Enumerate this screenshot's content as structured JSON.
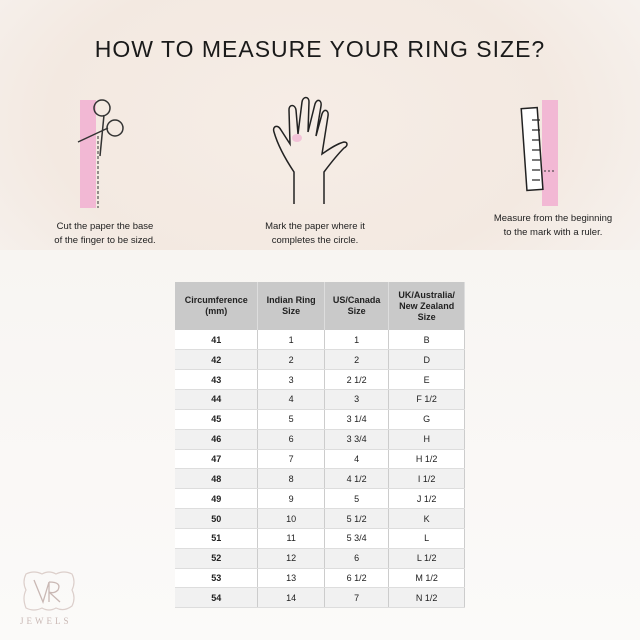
{
  "title": "HOW TO MEASURE YOUR RING SIZE?",
  "steps": [
    {
      "icon": "scissors-paper-icon",
      "line1": "Cut the paper the base",
      "line2": "of the finger to be sized."
    },
    {
      "icon": "hand-icon",
      "line1": "Mark the paper where it",
      "line2": "completes the circle."
    },
    {
      "icon": "ruler-icon",
      "line1": "Measure from the beginning",
      "line2": "to the mark with a ruler."
    }
  ],
  "table": {
    "headers": [
      [
        "Circumference",
        "(mm)"
      ],
      [
        "Indian Ring",
        "Size"
      ],
      [
        "US/Canada",
        "Size"
      ],
      [
        "UK/Australia/",
        "New Zealand",
        "Size"
      ]
    ],
    "rows": [
      [
        "41",
        "1",
        "1",
        "B"
      ],
      [
        "42",
        "2",
        "2",
        "D"
      ],
      [
        "43",
        "3",
        "2 1/2",
        "E"
      ],
      [
        "44",
        "4",
        "3",
        "F 1/2"
      ],
      [
        "45",
        "5",
        "3 1/4",
        "G"
      ],
      [
        "46",
        "6",
        "3 3/4",
        "H"
      ],
      [
        "47",
        "7",
        "4",
        "H 1/2"
      ],
      [
        "48",
        "8",
        "4 1/2",
        "I 1/2"
      ],
      [
        "49",
        "9",
        "5",
        "J 1/2"
      ],
      [
        "50",
        "10",
        "5 1/2",
        "K"
      ],
      [
        "51",
        "11",
        "5 3/4",
        "L"
      ],
      [
        "52",
        "12",
        "6",
        "L 1/2"
      ],
      [
        "53",
        "13",
        "6 1/2",
        "M 1/2"
      ],
      [
        "54",
        "14",
        "7",
        "N 1/2"
      ]
    ]
  },
  "logo": {
    "monogram": "VR",
    "text": "JEWELS"
  },
  "colors": {
    "pink": "#f2b8d4",
    "header": "#c9c9c9"
  }
}
